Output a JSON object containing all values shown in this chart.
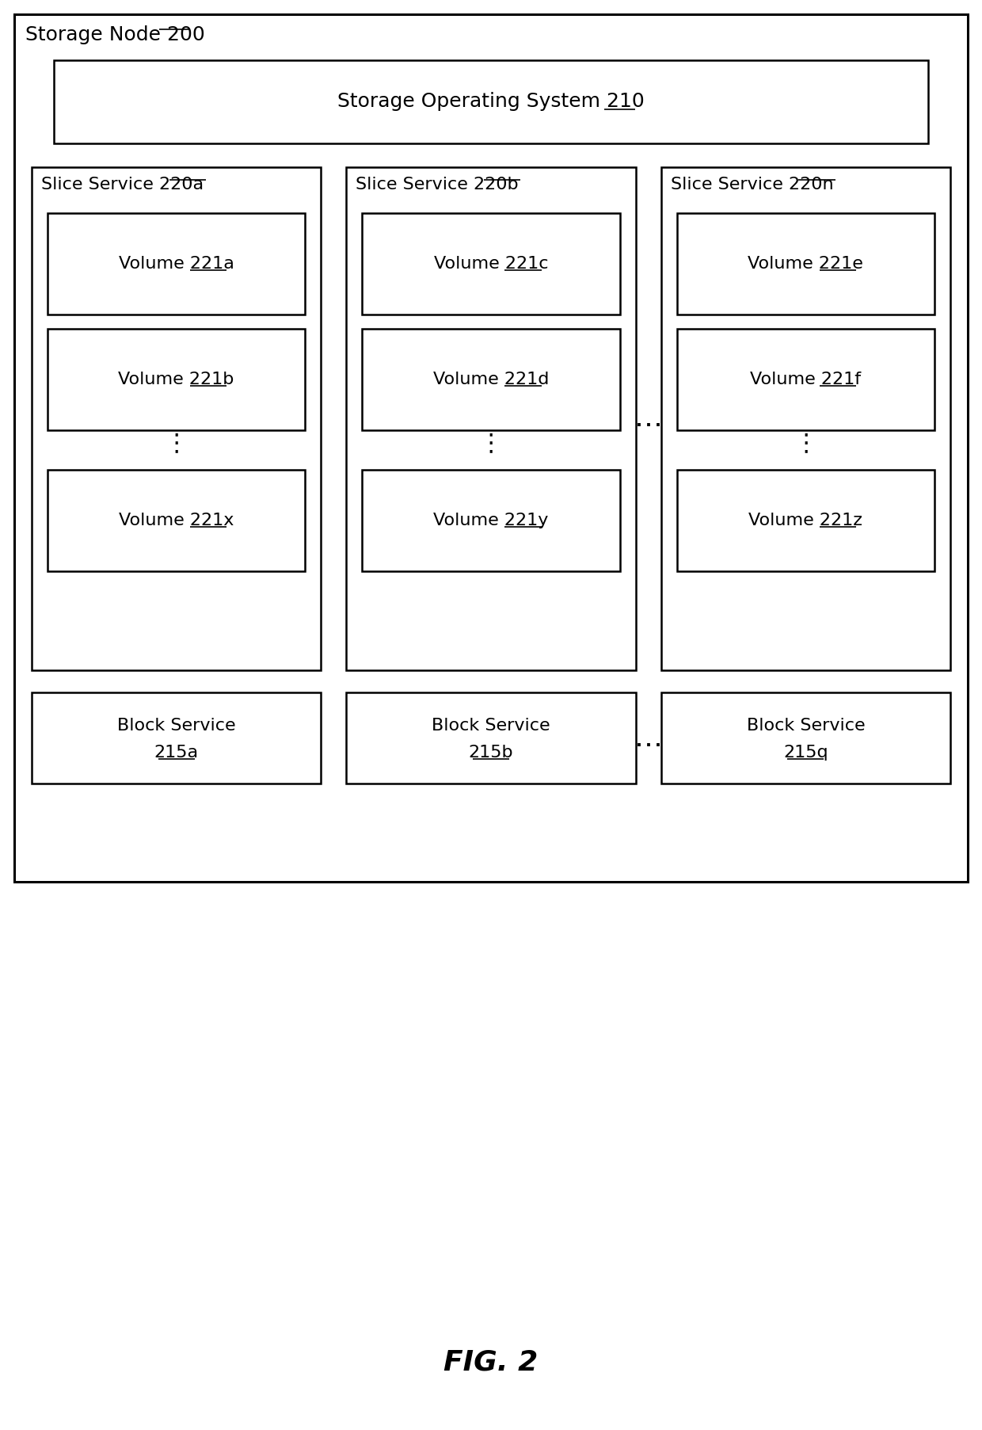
{
  "bg_color": "#ffffff",
  "fig_caption": "FIG. 2",
  "storage_node_label": "Storage Node ",
  "storage_node_num": "200",
  "sos_label": "Storage Operating System ",
  "sos_num": "210",
  "slice_services": [
    {
      "label": "Slice Service ",
      "num": "220a",
      "col": 0
    },
    {
      "label": "Slice Service ",
      "num": "220b",
      "col": 1
    },
    {
      "label": "Slice Service ",
      "num": "220n",
      "col": 2
    }
  ],
  "volumes": [
    {
      "label": "Volume ",
      "num": "221a",
      "col": 0,
      "row": 0
    },
    {
      "label": "Volume ",
      "num": "221b",
      "col": 0,
      "row": 1
    },
    {
      "label": "Volume ",
      "num": "221x",
      "col": 0,
      "row": 2
    },
    {
      "label": "Volume ",
      "num": "221c",
      "col": 1,
      "row": 0
    },
    {
      "label": "Volume ",
      "num": "221d",
      "col": 1,
      "row": 1
    },
    {
      "label": "Volume ",
      "num": "221y",
      "col": 1,
      "row": 2
    },
    {
      "label": "Volume ",
      "num": "221e",
      "col": 2,
      "row": 0
    },
    {
      "label": "Volume ",
      "num": "221f",
      "col": 2,
      "row": 1
    },
    {
      "label": "Volume ",
      "num": "221z",
      "col": 2,
      "row": 2
    }
  ],
  "block_services": [
    {
      "num": "215a",
      "col": 0
    },
    {
      "num": "215b",
      "col": 1
    },
    {
      "num": "215q",
      "col": 2
    }
  ],
  "font_size_title": 18,
  "font_size_label": 16,
  "font_size_caption": 26,
  "font_size_dots": 22,
  "line_color": "#000000",
  "line_width": 1.8,
  "outer_lw": 2.2
}
